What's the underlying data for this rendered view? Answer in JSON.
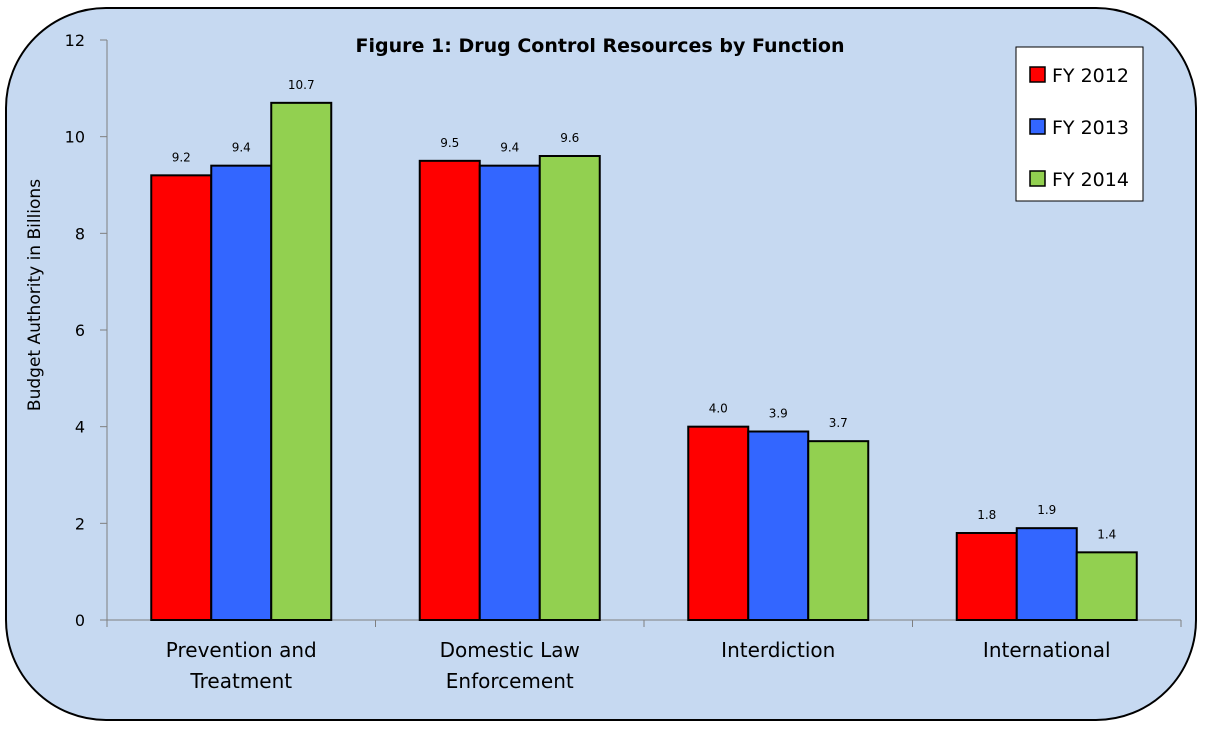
{
  "chart_data": {
    "type": "bar",
    "title": "Figure 1: Drug Control Resources by Function",
    "xlabel": "",
    "ylabel": "Budget Authority in Billions",
    "ylim": [
      0,
      12
    ],
    "yticks": [
      "0",
      "2",
      "4",
      "6",
      "8",
      "10",
      "12"
    ],
    "categories": [
      [
        "Prevention and",
        "Treatment"
      ],
      [
        "Domestic Law",
        "Enforcement"
      ],
      [
        "Interdiction"
      ],
      [
        "International"
      ]
    ],
    "series": [
      {
        "name": "FY 2012",
        "color": "#ff0000",
        "values": [
          9.2,
          9.5,
          4.0,
          1.8
        ],
        "labels": [
          "9.2",
          "9.5",
          "4.0",
          "1.8"
        ]
      },
      {
        "name": "FY 2013",
        "color": "#3366ff",
        "values": [
          9.4,
          9.4,
          3.9,
          1.9
        ],
        "labels": [
          "9.4",
          "9.4",
          "3.9",
          "1.9"
        ]
      },
      {
        "name": "FY 2014",
        "color": "#92d050",
        "values": [
          10.7,
          9.6,
          3.7,
          1.4
        ],
        "labels": [
          "10.7",
          "9.6",
          "3.7",
          "1.4"
        ]
      }
    ],
    "grid": false,
    "legend_position": "top-right",
    "background_color": "#c6d9f1"
  }
}
